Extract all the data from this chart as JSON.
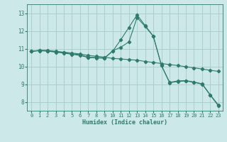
{
  "xlabel": "Humidex (Indice chaleur)",
  "background_color": "#cce8e8",
  "grid_color": "#aacece",
  "line_color": "#2e7b6e",
  "xlim": [
    -0.5,
    23.5
  ],
  "ylim": [
    7.5,
    13.5
  ],
  "xticks": [
    0,
    1,
    2,
    3,
    4,
    5,
    6,
    7,
    8,
    9,
    10,
    11,
    12,
    13,
    14,
    15,
    16,
    17,
    18,
    19,
    20,
    21,
    22,
    23
  ],
  "yticks": [
    8,
    9,
    10,
    11,
    12,
    13
  ],
  "series1_x": [
    0,
    1,
    2,
    3,
    4,
    5,
    6,
    7,
    8,
    9,
    10,
    11,
    12,
    13,
    14,
    15,
    16,
    17,
    18,
    19,
    20,
    21,
    22,
    23
  ],
  "series1_y": [
    10.85,
    10.9,
    10.9,
    10.85,
    10.8,
    10.75,
    10.7,
    10.62,
    10.57,
    10.52,
    10.45,
    10.42,
    10.38,
    10.35,
    10.28,
    10.22,
    10.16,
    10.1,
    10.05,
    9.98,
    9.92,
    9.85,
    9.78,
    9.72
  ],
  "series2_x": [
    0,
    1,
    2,
    3,
    4,
    5,
    6,
    7,
    8,
    9,
    10,
    11,
    12,
    13,
    14,
    15,
    16,
    17,
    18,
    19,
    20,
    21,
    22,
    23
  ],
  "series2_y": [
    10.85,
    10.9,
    10.88,
    10.82,
    10.78,
    10.72,
    10.65,
    10.52,
    10.5,
    10.48,
    10.85,
    11.5,
    12.2,
    12.9,
    12.3,
    11.7,
    10.05,
    9.1,
    9.18,
    9.2,
    9.12,
    9.02,
    8.4,
    7.82
  ],
  "series3_x": [
    0,
    1,
    2,
    3,
    4,
    5,
    6,
    7,
    8,
    9,
    10,
    11,
    12,
    13,
    14,
    15,
    16,
    17,
    18,
    19,
    20,
    21,
    22,
    23
  ],
  "series3_y": [
    10.85,
    10.88,
    10.86,
    10.8,
    10.75,
    10.68,
    10.62,
    10.5,
    10.48,
    10.46,
    10.88,
    11.08,
    11.38,
    12.75,
    12.25,
    11.7,
    10.05,
    9.08,
    9.15,
    9.18,
    9.1,
    9.0,
    8.38,
    7.78
  ]
}
